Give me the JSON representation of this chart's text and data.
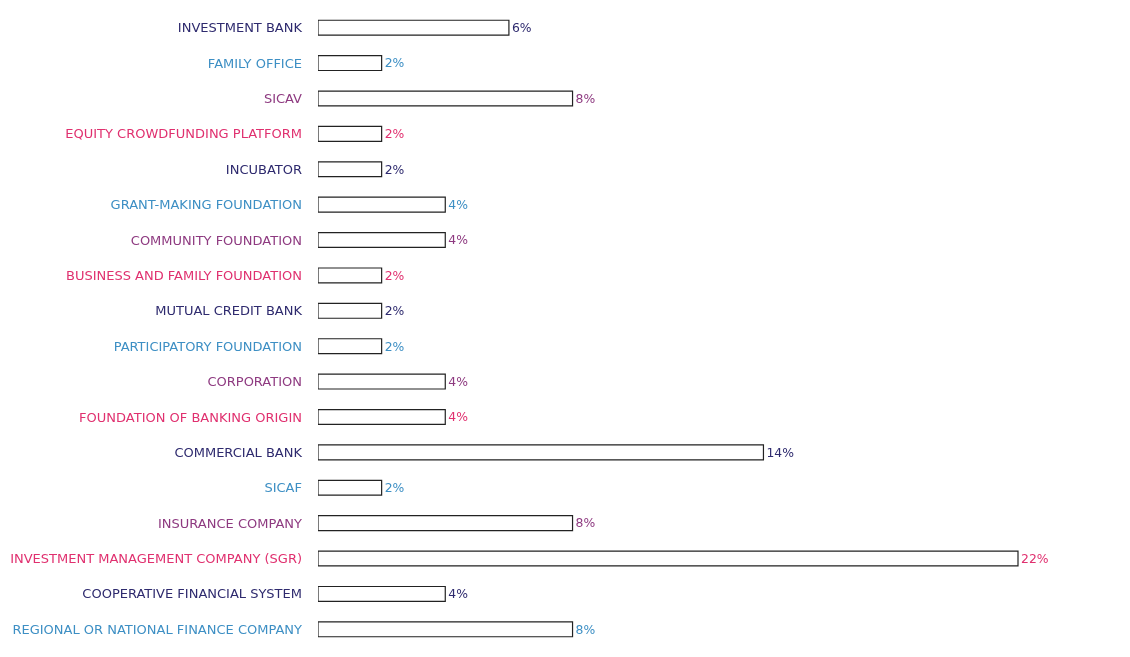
{
  "chart_data": {
    "type": "bar",
    "orientation": "horizontal",
    "categories": [
      "INVESTMENT BANK",
      "FAMILY OFFICE",
      "SICAV",
      "EQUITY CROWDFUNDING PLATFORM",
      "INCUBATOR",
      "GRANT-MAKING FOUNDATION",
      "COMMUNITY FOUNDATION",
      "BUSINESS AND FAMILY FOUNDATION",
      "MUTUAL CREDIT BANK",
      "PARTICIPATORY FOUNDATION",
      "CORPORATION",
      "FOUNDATION OF BANKING ORIGIN",
      "COMMERCIAL BANK",
      "SICAF",
      "INSURANCE COMPANY",
      "INVESTMENT MANAGEMENT COMPANY (SGR)",
      "COOPERATIVE FINANCIAL SYSTEM",
      "REGIONAL OR NATIONAL FINANCE COMPANY"
    ],
    "values": [
      6,
      2,
      8,
      2,
      2,
      4,
      4,
      2,
      2,
      2,
      4,
      4,
      14,
      2,
      8,
      22,
      4,
      8
    ],
    "value_labels": [
      "6%",
      "2%",
      "8%",
      "2%",
      "2%",
      "4%",
      "4%",
      "2%",
      "2%",
      "2%",
      "4%",
      "4%",
      "14%",
      "2%",
      "8%",
      "22%",
      "4%",
      "8%"
    ],
    "color": "#ffffff",
    "tick_labels": "y",
    "legend": false
  }
}
